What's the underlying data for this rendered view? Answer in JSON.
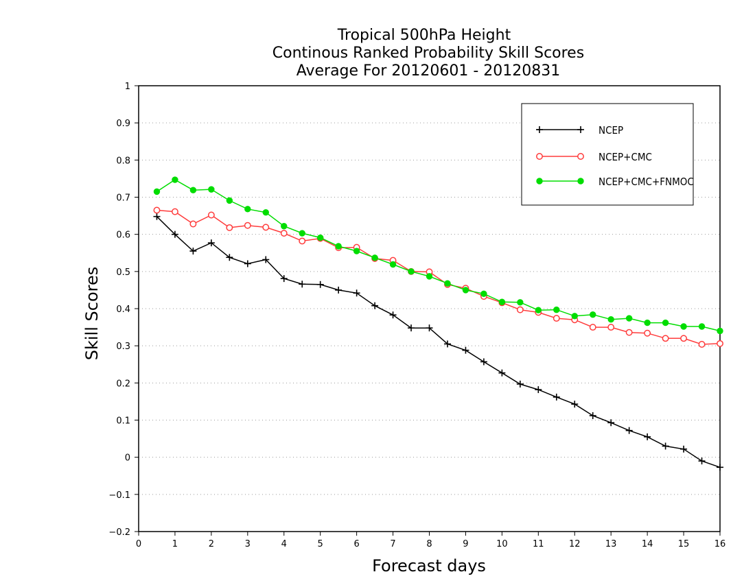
{
  "chart_data": {
    "type": "line",
    "title": [
      "Tropical 500hPa Height",
      "Continous Ranked Probability Skill Scores",
      "Average For 20120601 - 20120831"
    ],
    "xlabel": "Forecast days",
    "ylabel": "Skill Scores",
    "xlim": [
      0,
      16
    ],
    "ylim": [
      -0.2,
      1
    ],
    "xticks": [
      "0",
      "1",
      "2",
      "3",
      "4",
      "5",
      "6",
      "7",
      "8",
      "9",
      "10",
      "11",
      "12",
      "13",
      "14",
      "15",
      "16"
    ],
    "yticks": [
      "−0.2",
      "−0.1",
      "0",
      "0.1",
      "0.2",
      "0.3",
      "0.4",
      "0.5",
      "0.6",
      "0.7",
      "0.8",
      "0.9",
      "1"
    ],
    "grid": true,
    "legend_position": "top-right",
    "x": [
      0.5,
      1,
      1.5,
      2,
      2.5,
      3,
      3.5,
      4,
      4.5,
      5,
      5.5,
      6,
      6.5,
      7,
      7.5,
      8,
      8.5,
      9,
      9.5,
      10,
      10.5,
      11,
      11.5,
      12,
      12.5,
      13,
      13.5,
      14,
      14.5,
      15,
      15.5,
      16
    ],
    "series": [
      {
        "name": "NCEP",
        "color": "#000000",
        "marker": "plus",
        "values": [
          0.648,
          0.6,
          0.555,
          0.577,
          0.538,
          0.521,
          0.532,
          0.481,
          0.466,
          0.465,
          0.45,
          0.442,
          0.408,
          0.383,
          0.348,
          0.348,
          0.305,
          0.288,
          0.257,
          0.227,
          0.197,
          0.182,
          0.162,
          0.143,
          0.112,
          0.093,
          0.072,
          0.055,
          0.03,
          0.022,
          -0.01,
          -0.027
        ]
      },
      {
        "name": "NCEP+CMC",
        "color": "#ff3b3b",
        "marker": "open-circle",
        "values": [
          0.665,
          0.661,
          0.628,
          0.652,
          0.618,
          0.624,
          0.619,
          0.603,
          0.582,
          0.589,
          0.564,
          0.565,
          0.535,
          0.53,
          0.5,
          0.499,
          0.465,
          0.455,
          0.433,
          0.416,
          0.397,
          0.39,
          0.374,
          0.37,
          0.35,
          0.35,
          0.336,
          0.334,
          0.32,
          0.32,
          0.304,
          0.306
        ]
      },
      {
        "name": "NCEP+CMC+FNMOC",
        "color": "#00dd00",
        "marker": "filled-circle",
        "values": [
          0.715,
          0.747,
          0.719,
          0.721,
          0.691,
          0.668,
          0.659,
          0.622,
          0.603,
          0.591,
          0.568,
          0.555,
          0.537,
          0.519,
          0.5,
          0.487,
          0.468,
          0.45,
          0.44,
          0.418,
          0.417,
          0.396,
          0.397,
          0.38,
          0.384,
          0.371,
          0.374,
          0.362,
          0.362,
          0.352,
          0.352,
          0.34
        ]
      }
    ]
  }
}
